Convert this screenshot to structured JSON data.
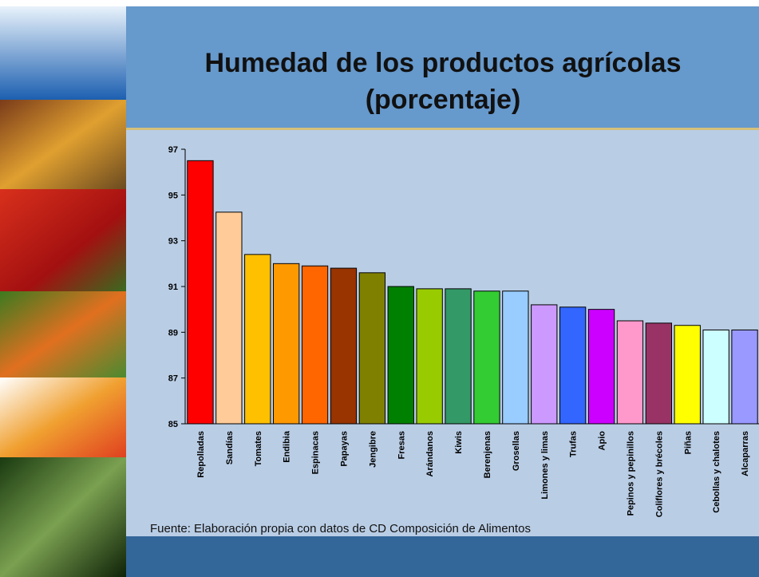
{
  "chart_data": {
    "type": "bar",
    "title": "Humedad de los productos agrícolas",
    "subtitle": "(porcentaje)",
    "source": "Fuente: Elaboración propia con datos de CD Composición de Alimentos",
    "categories": [
      "Repolladas",
      "Sandías",
      "Tomates",
      "Endibia",
      "Espinacas",
      "Papayas",
      "Jengibre",
      "Fresas",
      "Arándanos",
      "Kiwis",
      "Berenjenas",
      "Grosellas",
      "Limones y limas",
      "Trufas",
      "Apio",
      "Pepinos y pepinillos",
      "Coliflores y brécoles",
      "Piñas",
      "Cebollas y chalotes",
      "Alcaparras"
    ],
    "values": [
      96.5,
      94.25,
      92.4,
      92.0,
      91.9,
      91.8,
      91.6,
      91.0,
      90.9,
      90.9,
      90.8,
      90.8,
      90.2,
      90.1,
      90.0,
      89.5,
      89.4,
      89.3,
      89.1,
      89.1
    ],
    "colors": [
      "#ff0000",
      "#ffcc99",
      "#ffc000",
      "#ff9900",
      "#ff6600",
      "#993300",
      "#808000",
      "#008000",
      "#99cc00",
      "#339966",
      "#33cc33",
      "#99ccff",
      "#cc99ff",
      "#3366ff",
      "#cc00ff",
      "#ff99cc",
      "#993366",
      "#ffff00",
      "#ccffff",
      "#9999ff"
    ],
    "ylim": [
      85,
      97
    ],
    "yticks": [
      85,
      87,
      89,
      91,
      93,
      95,
      97
    ],
    "grid": false
  }
}
